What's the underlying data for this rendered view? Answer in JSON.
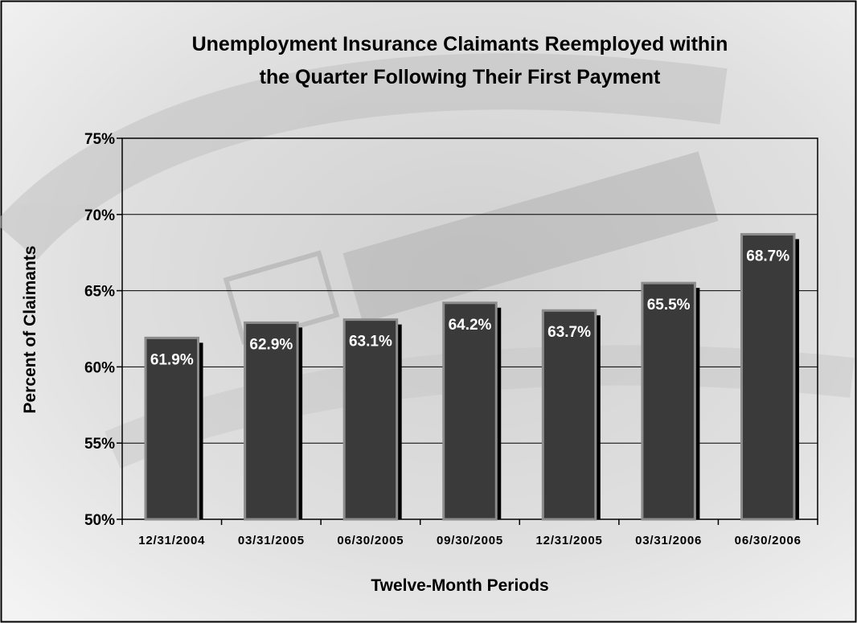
{
  "chart_data": {
    "type": "bar",
    "title": "Unemployment Insurance Claimants Reemployed within the Quarter Following Their First Payment",
    "title_lines": [
      "Unemployment Insurance Claimants Reemployed within",
      "the Quarter Following Their First Payment"
    ],
    "xlabel": "Twelve-Month Periods",
    "ylabel": "Percent of Claimants",
    "categories": [
      "12/31/2004",
      "03/31/2005",
      "06/30/2005",
      "09/30/2005",
      "12/31/2005",
      "03/31/2006",
      "06/30/2006"
    ],
    "values": [
      61.9,
      62.9,
      63.1,
      64.2,
      63.7,
      65.5,
      68.7
    ],
    "data_labels": [
      "61.9%",
      "62.9%",
      "63.1%",
      "64.2%",
      "63.7%",
      "65.5%",
      "68.7%"
    ],
    "ylim": [
      50,
      75
    ],
    "yticks": [
      50,
      55,
      60,
      65,
      70,
      75
    ],
    "ytick_labels": [
      "50%",
      "55%",
      "60%",
      "65%",
      "70%",
      "75%"
    ],
    "grid": true,
    "legend": "none",
    "background_image": "newspaper help wanted classifieds (faded photo)",
    "colors": {
      "bar_fill": "#3a3a3a",
      "bar_border": "#8c8c8c",
      "bar_shadow": "#000000",
      "data_label": "#ffffff",
      "frame_border": "#000000",
      "background": "#ededed"
    }
  }
}
